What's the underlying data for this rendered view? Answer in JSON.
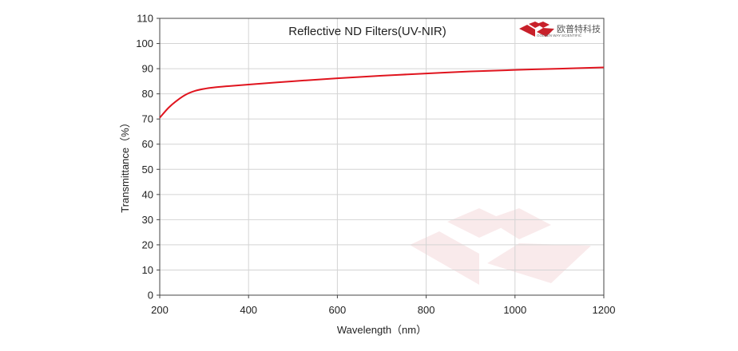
{
  "chart_data": {
    "type": "line",
    "title": "Reflective ND Filters(UV-NIR)",
    "xlabel": "Wavelength（nm）",
    "ylabel": "Transmittance（%）",
    "xlim": [
      200,
      1200
    ],
    "ylim": [
      0,
      110
    ],
    "x_ticks": [
      200,
      400,
      600,
      800,
      1000,
      1200
    ],
    "y_ticks": [
      0,
      10,
      20,
      30,
      40,
      50,
      60,
      70,
      80,
      90,
      100,
      110
    ],
    "grid": true,
    "series": [
      {
        "color": "#e0141e",
        "x": [
          200,
          220,
          240,
          260,
          280,
          300,
          320,
          350,
          400,
          500,
          600,
          700,
          800,
          900,
          1000,
          1100,
          1200
        ],
        "y": [
          70.5,
          74.5,
          77.5,
          79.8,
          81.2,
          82.0,
          82.5,
          83.0,
          83.7,
          85.0,
          86.2,
          87.2,
          88.1,
          88.9,
          89.5,
          90.0,
          90.5
        ]
      }
    ]
  },
  "logo": {
    "name_cn": "欧普特科技",
    "name_en": "GOLDEN WAY SCIENTIFIC",
    "color": "#c8202a"
  }
}
